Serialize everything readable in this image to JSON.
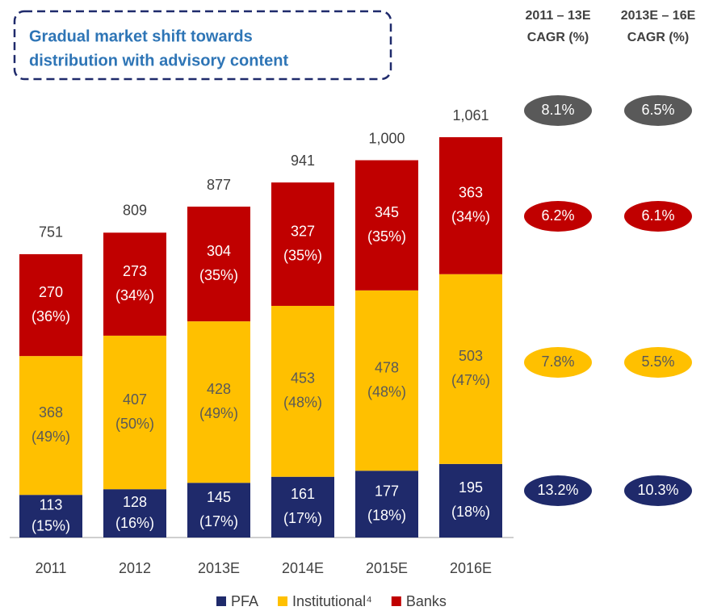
{
  "chart_data": {
    "type": "stacked_bar",
    "title_lines": [
      "Gradual market shift towards",
      "distribution with advisory content"
    ],
    "categories": [
      "2011",
      "2012",
      "2013E",
      "2014E",
      "2015E",
      "2016E"
    ],
    "series": [
      {
        "name": "PFA",
        "color": "#1f2a6b",
        "values": [
          113,
          128,
          145,
          161,
          177,
          195
        ],
        "share_labels": [
          "(15%)",
          "(16%)",
          "(17%)",
          "(17%)",
          "(18%)",
          "(18%)"
        ]
      },
      {
        "name": "Institutional⁴",
        "color": "#ffc000",
        "values": [
          368,
          407,
          428,
          453,
          478,
          503
        ],
        "share_labels": [
          "(49%)",
          "(50%)",
          "(49%)",
          "(48%)",
          "(48%)",
          "(47%)"
        ]
      },
      {
        "name": "Banks",
        "color": "#c00000",
        "values": [
          270,
          273,
          304,
          327,
          345,
          363
        ],
        "share_labels": [
          "(36%)",
          "(34%)",
          "(35%)",
          "(35%)",
          "(35%)",
          "(34%)"
        ]
      }
    ],
    "totals": [
      751,
      809,
      877,
      941,
      1000,
      1061
    ],
    "total_labels": [
      "751",
      "809",
      "877",
      "941",
      "1,000",
      "1,061"
    ],
    "cagr": {
      "columns": [
        [
          "2011 – 13E",
          "CAGR (%)"
        ],
        [
          "2013E – 16E",
          "CAGR (%)"
        ]
      ],
      "total": {
        "color": "#595959",
        "values": [
          8.1,
          6.5
        ],
        "value_labels": [
          "8.1%",
          "6.5%"
        ]
      },
      "series": [
        {
          "values": [
            13.2,
            10.3
          ],
          "value_labels": [
            "13.2%",
            "10.3%"
          ]
        },
        {
          "values": [
            7.8,
            5.5
          ],
          "value_labels": [
            "7.8%",
            "5.5%"
          ]
        },
        {
          "values": [
            6.2,
            6.1
          ],
          "value_labels": [
            "6.2%",
            "6.1%"
          ]
        }
      ]
    }
  }
}
